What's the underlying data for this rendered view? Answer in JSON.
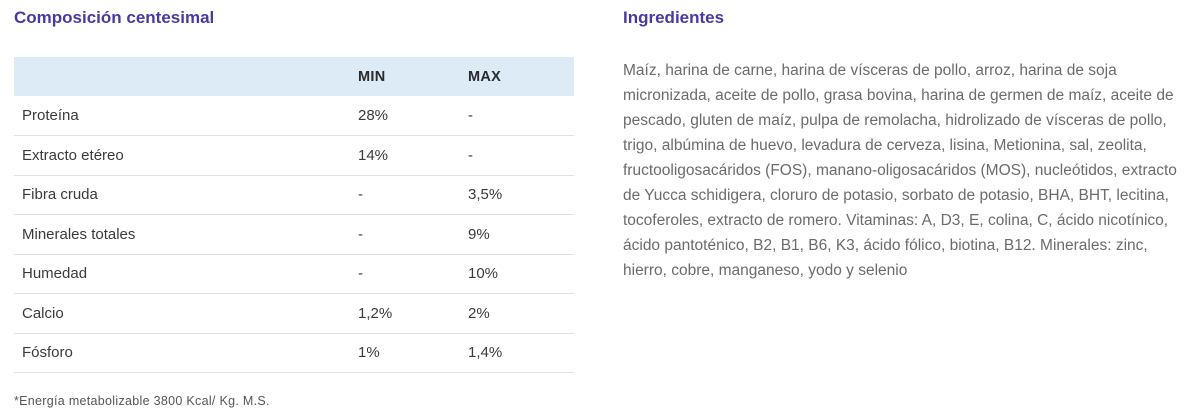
{
  "composition": {
    "title": "Composición centesimal",
    "headers": [
      "",
      "MIN",
      "MAX"
    ],
    "rows": [
      [
        "Proteína",
        "28%",
        "-"
      ],
      [
        "Extracto etéreo",
        "14%",
        "-"
      ],
      [
        "Fibra cruda",
        "-",
        "3,5%"
      ],
      [
        "Minerales totales",
        "-",
        "9%"
      ],
      [
        "Humedad",
        "-",
        "10%"
      ],
      [
        "Calcio",
        "1,2%",
        "2%"
      ],
      [
        "Fósforo",
        "1%",
        "1,4%"
      ]
    ],
    "footnote": "*Energía metabolizable 3800 Kcal/ Kg. M.S."
  },
  "ingredients": {
    "title": "Ingredientes",
    "text": "Maíz, harina de carne, harina de vísceras de pollo, arroz, harina de soja micronizada, aceite de pollo, grasa bovina, harina de germen de maíz, aceite de pescado, gluten de maíz, pulpa de remolacha, hidrolizado de vísceras de pollo, trigo, albúmina de huevo, levadura de cerveza, lisina, Metionina, sal, zeolita, fructooligosacáridos (FOS), manano-oligosacáridos (MOS), nucleótidos, extracto de Yucca schidigera, cloruro de potasio, sorbato de potasio, BHA, BHT, lecitina, tocoferoles, extracto de romero. Vitaminas: A, D3, E, colina, C, ácido nicotínico, ácido pantoténico, B2, B1, B6, K3, ácido fólico, biotina, B12. Minerales: zinc, hierro, cobre, manganeso, yodo y selenio"
  },
  "colors": {
    "heading": "#4a3aa0",
    "table_header_bg": "#dcebf6"
  }
}
